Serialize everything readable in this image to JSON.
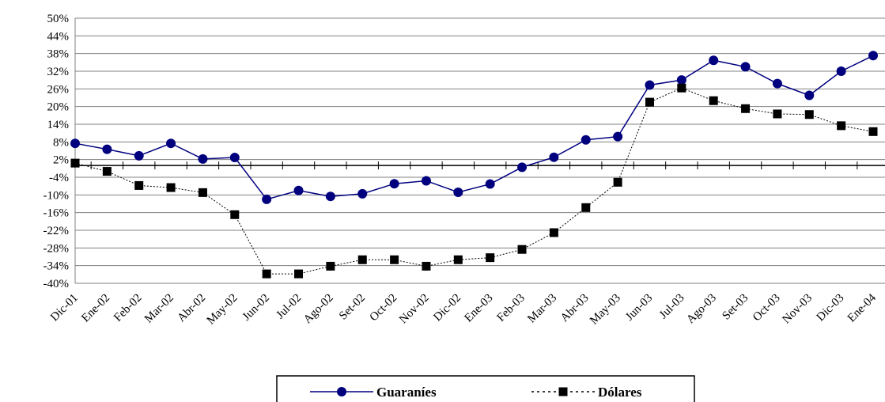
{
  "chart_data": {
    "type": "line",
    "categories": [
      "Dic-01",
      "Ene-02",
      "Feb-02",
      "Mar-02",
      "Abr-02",
      "May-02",
      "Jun-02",
      "Jul-02",
      "Ago-02",
      "Set-02",
      "Oct-02",
      "Nov-02",
      "Dic-02",
      "Ene-03",
      "Feb-03",
      "Mar-03",
      "Abr-03",
      "May-03",
      "Jun-03",
      "Jul-03",
      "Ago-03",
      "Set-03",
      "Oct-03",
      "Nov-03",
      "Dic-03",
      "Ene-04"
    ],
    "ylim": [
      -40,
      50
    ],
    "yticks": [
      50,
      44,
      38,
      32,
      26,
      20,
      14,
      8,
      2,
      -4,
      -10,
      -16,
      -22,
      -28,
      -34,
      -40
    ],
    "ytick_labels": [
      "50%",
      "44%",
      "38%",
      "32%",
      "26%",
      "20%",
      "14%",
      "8%",
      "2%",
      "-4%",
      "-10%",
      "-16%",
      "-22%",
      "-28%",
      "-34%",
      "-40%"
    ],
    "grid": true,
    "legend_position": "bottom",
    "series": [
      {
        "name": "Guaraníes",
        "color": "#00007f",
        "line_style": "solid",
        "marker": "circle",
        "values": [
          7.5,
          5.5,
          3.3,
          7.5,
          2.2,
          2.7,
          -11.5,
          -8.5,
          -10.5,
          -9.6,
          -6.2,
          -5.2,
          -9.1,
          -6.3,
          -0.6,
          2.8,
          8.7,
          9.8,
          27.3,
          29.0,
          35.7,
          33.5,
          27.8,
          23.8,
          32.0,
          37.3
        ]
      },
      {
        "name": "Dólares",
        "color": "#000000",
        "line_style": "dotted",
        "marker": "square",
        "values": [
          0.8,
          -2.0,
          -6.8,
          -7.5,
          -9.2,
          -16.7,
          -36.8,
          -36.8,
          -34.2,
          -32.0,
          -32.0,
          -34.2,
          -32.0,
          -31.3,
          -28.5,
          -22.8,
          -14.3,
          -5.7,
          21.5,
          26.3,
          22.0,
          19.3,
          17.5,
          17.3,
          13.5,
          11.5
        ]
      }
    ]
  }
}
